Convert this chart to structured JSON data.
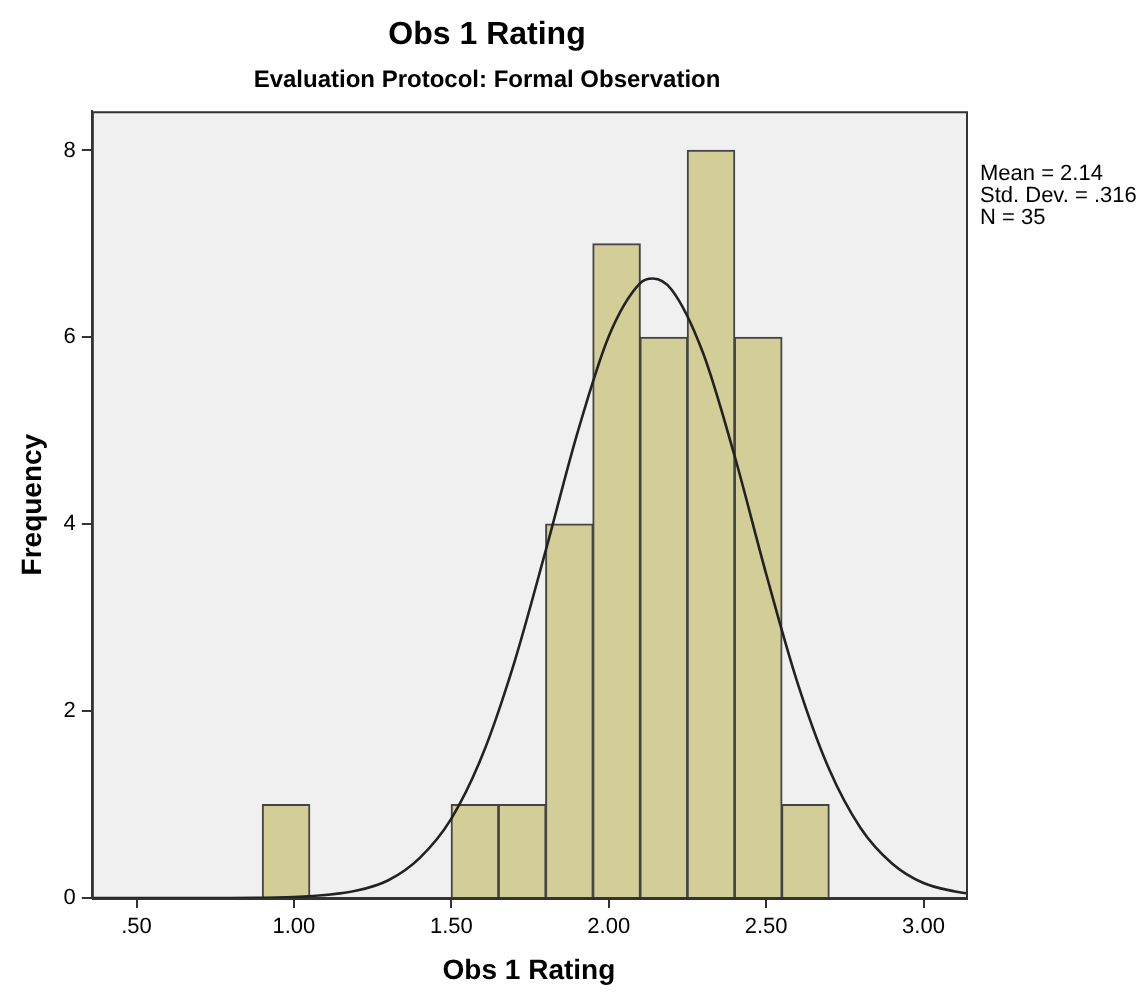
{
  "chart_data": {
    "type": "histogram",
    "title": "Obs 1 Rating",
    "subtitle": "Evaluation Protocol: Formal Observation",
    "xlabel": "Obs 1 Rating",
    "ylabel": "Frequency",
    "bins": [
      0.9,
      1.05,
      1.2,
      1.35,
      1.5,
      1.65,
      1.8,
      1.95,
      2.1,
      2.25,
      2.4,
      2.55,
      2.7
    ],
    "values": [
      1,
      0,
      0,
      0,
      1,
      1,
      4,
      7,
      6,
      8,
      6,
      1
    ],
    "color": "#d3ce97",
    "series": [
      {
        "type": "line",
        "color": "#222222",
        "x": [
          0.36,
          0.8,
          1.0,
          1.2,
          1.3,
          1.4,
          1.5,
          1.6,
          1.7,
          1.8,
          1.9,
          2.0,
          2.1,
          2.14,
          2.2,
          2.3,
          2.4,
          2.5,
          2.6,
          2.7,
          2.8,
          2.9,
          3.0,
          3.1,
          3.135
        ],
        "values": [
          0,
          0,
          0.01,
          0.08,
          0.19,
          0.43,
          0.85,
          1.54,
          2.52,
          3.72,
          4.97,
          6.01,
          6.58,
          6.63,
          6.51,
          5.83,
          4.73,
          3.47,
          2.3,
          1.38,
          0.75,
          0.37,
          0.16,
          0.07,
          0.05
        ]
      }
    ],
    "xlim": [
      0.358,
      3.135
    ],
    "xticks": [
      {
        "value": 0.5,
        "label": ".50"
      },
      {
        "value": 1,
        "label": "1.00"
      },
      {
        "value": 1.5,
        "label": "1.50"
      },
      {
        "value": 2,
        "label": "2.00"
      },
      {
        "value": 2.5,
        "label": "2.50"
      },
      {
        "value": 3,
        "label": "3.00"
      }
    ],
    "ylim": [
      0,
      8.42
    ],
    "yticks": [
      0,
      2,
      4,
      6,
      8
    ],
    "grid": false,
    "legend": false,
    "marker": "none",
    "annotations": [
      "Mean = 2.14",
      "Std. Dev. = .316",
      "N = 35"
    ]
  }
}
